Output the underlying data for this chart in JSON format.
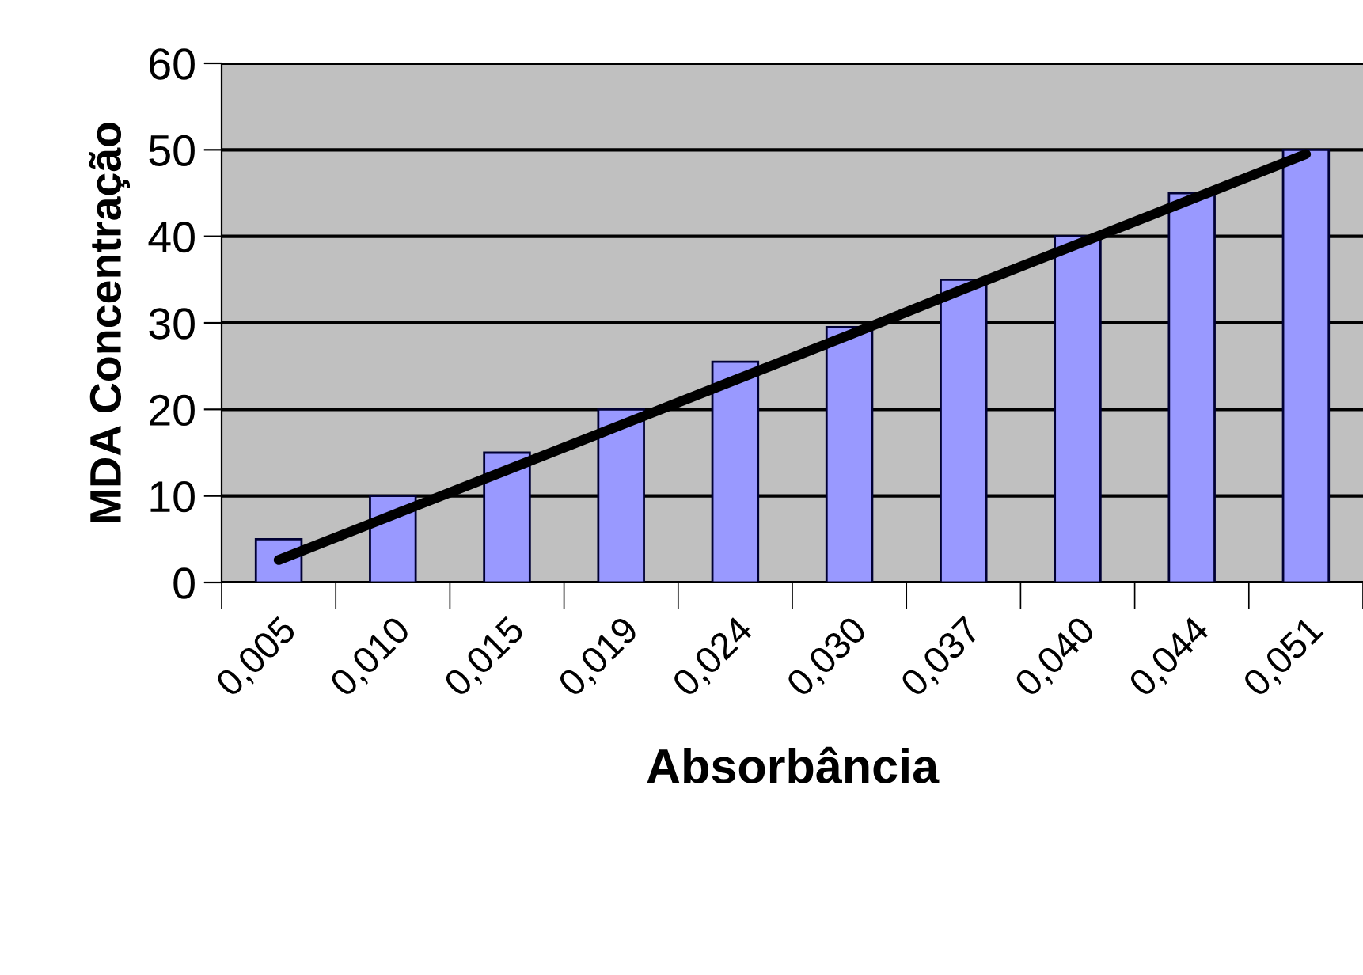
{
  "chart_data": {
    "type": "bar",
    "xlabel": "Absorbância",
    "ylabel": "MDA Concentração",
    "categories": [
      "0,005",
      "0,010",
      "0,015",
      "0,019",
      "0,024",
      "0,030",
      "0,037",
      "0,040",
      "0,044",
      "0,051"
    ],
    "series": [
      {
        "color": "#9999ff",
        "values": [
          5,
          10,
          15,
          20,
          25.5,
          29.5,
          35,
          40,
          45,
          50
        ]
      },
      {
        "type": "line",
        "color": "#000000",
        "values": [
          2.6,
          7.8,
          13.0,
          18.2,
          23.4,
          28.6,
          33.9,
          39.1,
          44.3,
          49.5
        ]
      }
    ],
    "ylim": [
      0,
      60
    ],
    "yticks": [
      0,
      10,
      20,
      30,
      40,
      50,
      60
    ],
    "grid": "y",
    "legend": false,
    "marker": "none",
    "line_style": "solid"
  }
}
